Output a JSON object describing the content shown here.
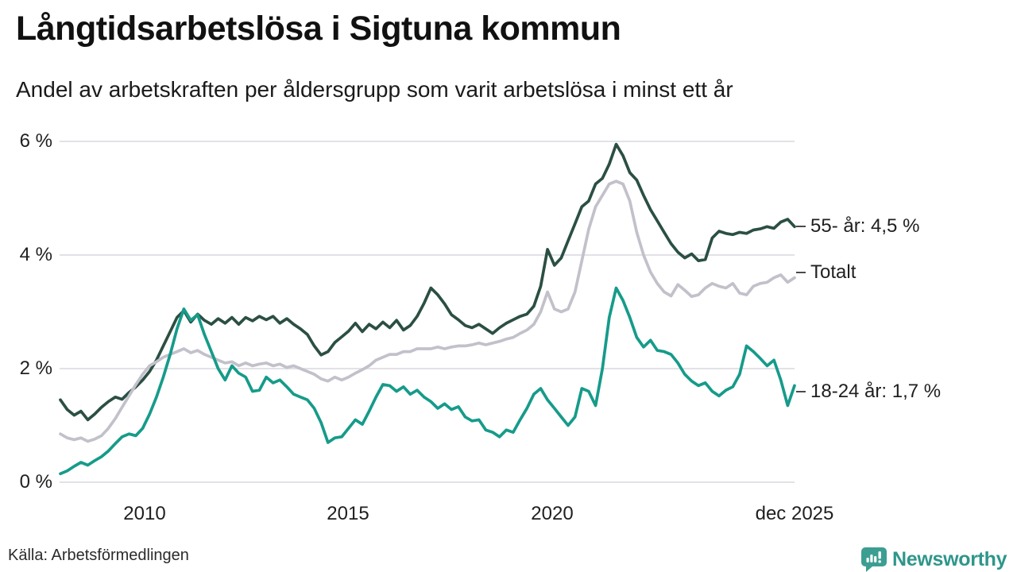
{
  "header": {
    "title": "Långtidsarbetslösa i Sigtuna kommun",
    "subtitle": "Andel av arbetskraften per åldersgrupp som varit arbetslösa i minst ett år"
  },
  "footer": {
    "source": "Källa: Arbetsförmedlingen",
    "brand": "Newsworthy"
  },
  "colors": {
    "background": "#ffffff",
    "gridline": "#e2e2e6",
    "text": "#1f1f1f",
    "label_dash": "#4a4a4a",
    "brand_teal": "#2e968b",
    "series_55": "#2b4f43",
    "series_total": "#c2c1cb",
    "series_1824": "#169b8a"
  },
  "chart_data": {
    "type": "line",
    "title": "Långtidsarbetslösa i Sigtuna kommun",
    "subtitle": "Andel av arbetskraften per åldersgrupp som varit arbetslösa i minst ett år",
    "unit": "%",
    "sampling": "every 2 months, Jan 2008 - Dec 2025",
    "x_start": 2008.0,
    "x_end": 2025.92,
    "ylim": [
      0,
      6
    ],
    "grid": "horizontal",
    "legend_position": "right-end-labels",
    "y_axis": {
      "ticks": [
        "6 %",
        "4 %",
        "2 %",
        "0 %"
      ],
      "tick_values": [
        6,
        4,
        2,
        0
      ]
    },
    "x_axis": {
      "ticks": [
        "2010",
        "2015",
        "2020",
        "dec 2025"
      ],
      "tick_values": [
        2010,
        2015,
        2020,
        2025.92
      ]
    },
    "series": [
      {
        "name": "55- år",
        "end_label": "55- år: 4,5 %",
        "end_value_text": "4,5 %",
        "color": "#2b4f43",
        "values": [
          1.45,
          1.28,
          1.18,
          1.25,
          1.1,
          1.2,
          1.32,
          1.42,
          1.5,
          1.46,
          1.58,
          1.68,
          1.8,
          1.95,
          2.15,
          2.4,
          2.65,
          2.9,
          3.02,
          2.82,
          2.96,
          2.85,
          2.78,
          2.88,
          2.8,
          2.9,
          2.78,
          2.9,
          2.84,
          2.92,
          2.86,
          2.92,
          2.8,
          2.88,
          2.78,
          2.7,
          2.6,
          2.4,
          2.24,
          2.3,
          2.46,
          2.56,
          2.66,
          2.8,
          2.65,
          2.78,
          2.7,
          2.82,
          2.72,
          2.85,
          2.68,
          2.76,
          2.92,
          3.15,
          3.42,
          3.3,
          3.14,
          2.95,
          2.86,
          2.76,
          2.72,
          2.78,
          2.7,
          2.62,
          2.72,
          2.8,
          2.86,
          2.92,
          2.96,
          3.1,
          3.45,
          4.1,
          3.82,
          3.95,
          4.25,
          4.55,
          4.85,
          4.95,
          5.25,
          5.35,
          5.6,
          5.95,
          5.75,
          5.45,
          5.32,
          5.05,
          4.8,
          4.6,
          4.4,
          4.2,
          4.05,
          3.95,
          4.02,
          3.9,
          3.92,
          4.3,
          4.42,
          4.38,
          4.36,
          4.4,
          4.38,
          4.44,
          4.46,
          4.5,
          4.47,
          4.58,
          4.63,
          4.5
        ]
      },
      {
        "name": "Totalt",
        "end_label": "Totalt",
        "end_value_text": "3,6 %",
        "color": "#c2c1cb",
        "values": [
          0.85,
          0.78,
          0.75,
          0.78,
          0.72,
          0.76,
          0.82,
          0.95,
          1.12,
          1.32,
          1.52,
          1.72,
          1.9,
          2.05,
          2.12,
          2.2,
          2.25,
          2.3,
          2.35,
          2.28,
          2.32,
          2.25,
          2.2,
          2.15,
          2.1,
          2.12,
          2.05,
          2.1,
          2.05,
          2.08,
          2.1,
          2.05,
          2.08,
          2.02,
          2.05,
          2.0,
          1.95,
          1.9,
          1.82,
          1.78,
          1.85,
          1.8,
          1.85,
          1.92,
          1.98,
          2.05,
          2.15,
          2.2,
          2.25,
          2.25,
          2.3,
          2.3,
          2.35,
          2.35,
          2.35,
          2.38,
          2.35,
          2.38,
          2.4,
          2.4,
          2.42,
          2.45,
          2.42,
          2.45,
          2.48,
          2.52,
          2.55,
          2.62,
          2.68,
          2.78,
          3.0,
          3.35,
          3.05,
          3.0,
          3.05,
          3.35,
          3.9,
          4.45,
          4.85,
          5.05,
          5.25,
          5.3,
          5.25,
          4.95,
          4.4,
          4.0,
          3.7,
          3.5,
          3.35,
          3.28,
          3.48,
          3.38,
          3.27,
          3.3,
          3.42,
          3.5,
          3.45,
          3.42,
          3.5,
          3.33,
          3.3,
          3.45,
          3.5,
          3.52,
          3.6,
          3.65,
          3.52,
          3.6
        ]
      },
      {
        "name": "18-24 år",
        "end_label": "18-24 år: 1,7 %",
        "end_value_text": "1,7 %",
        "color": "#169b8a",
        "values": [
          0.15,
          0.2,
          0.28,
          0.35,
          0.3,
          0.38,
          0.45,
          0.55,
          0.68,
          0.8,
          0.85,
          0.82,
          0.95,
          1.2,
          1.5,
          1.85,
          2.25,
          2.7,
          3.05,
          2.85,
          2.95,
          2.6,
          2.3,
          2.0,
          1.8,
          2.05,
          1.92,
          1.85,
          1.6,
          1.62,
          1.85,
          1.75,
          1.8,
          1.68,
          1.55,
          1.5,
          1.45,
          1.3,
          1.05,
          0.7,
          0.78,
          0.8,
          0.95,
          1.1,
          1.02,
          1.25,
          1.5,
          1.72,
          1.7,
          1.6,
          1.68,
          1.55,
          1.62,
          1.5,
          1.42,
          1.3,
          1.38,
          1.28,
          1.33,
          1.15,
          1.08,
          1.1,
          0.92,
          0.88,
          0.8,
          0.92,
          0.88,
          1.1,
          1.3,
          1.55,
          1.65,
          1.45,
          1.3,
          1.15,
          1.0,
          1.15,
          1.65,
          1.6,
          1.35,
          2.0,
          2.9,
          3.42,
          3.2,
          2.9,
          2.55,
          2.38,
          2.5,
          2.32,
          2.3,
          2.25,
          2.1,
          1.9,
          1.78,
          1.7,
          1.75,
          1.6,
          1.52,
          1.62,
          1.68,
          1.9,
          2.4,
          2.3,
          2.18,
          2.05,
          2.15,
          1.8,
          1.35,
          1.7
        ]
      }
    ]
  }
}
